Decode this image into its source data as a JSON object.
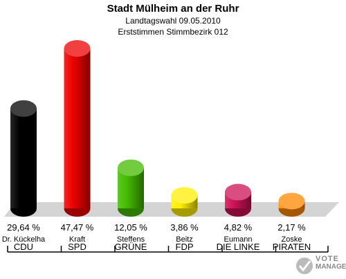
{
  "header": {
    "title": "Stadt Mülheim an der Ruhr",
    "subtitle_1": "Landtagswahl 09.05.2010",
    "subtitle_2": "Erststimmen Stimmbezirk 012"
  },
  "chart_data": {
    "type": "bar",
    "title": "Stadt Mülheim an der Ruhr",
    "subtitle": "Landtagswahl 09.05.2010 Erststimmen Stimmbezirk 012",
    "categories": [
      "CDU",
      "SPD",
      "GRÜNE",
      "FDP",
      "DIE LINKE",
      "PIRATEN"
    ],
    "candidates": [
      "Dr. Kückelha",
      "Kraft",
      "Steffens",
      "Beitz",
      "Eumann",
      "Zoske"
    ],
    "values": [
      29.64,
      47.47,
      12.05,
      3.86,
      4.82,
      2.17
    ],
    "value_labels": [
      "29,64 %",
      "47,47 %",
      "12,05 %",
      "3,86 %",
      "4,82 %",
      "2,17 %"
    ],
    "colors": [
      "#000000",
      "#ee0000",
      "#44bb00",
      "#ffee00",
      "#cc1155",
      "#ff8800"
    ],
    "ylim": [
      0,
      47.47
    ],
    "grid": false
  },
  "logo": {
    "text_top": "VOTE",
    "text_bottom": "MANAGER"
  }
}
